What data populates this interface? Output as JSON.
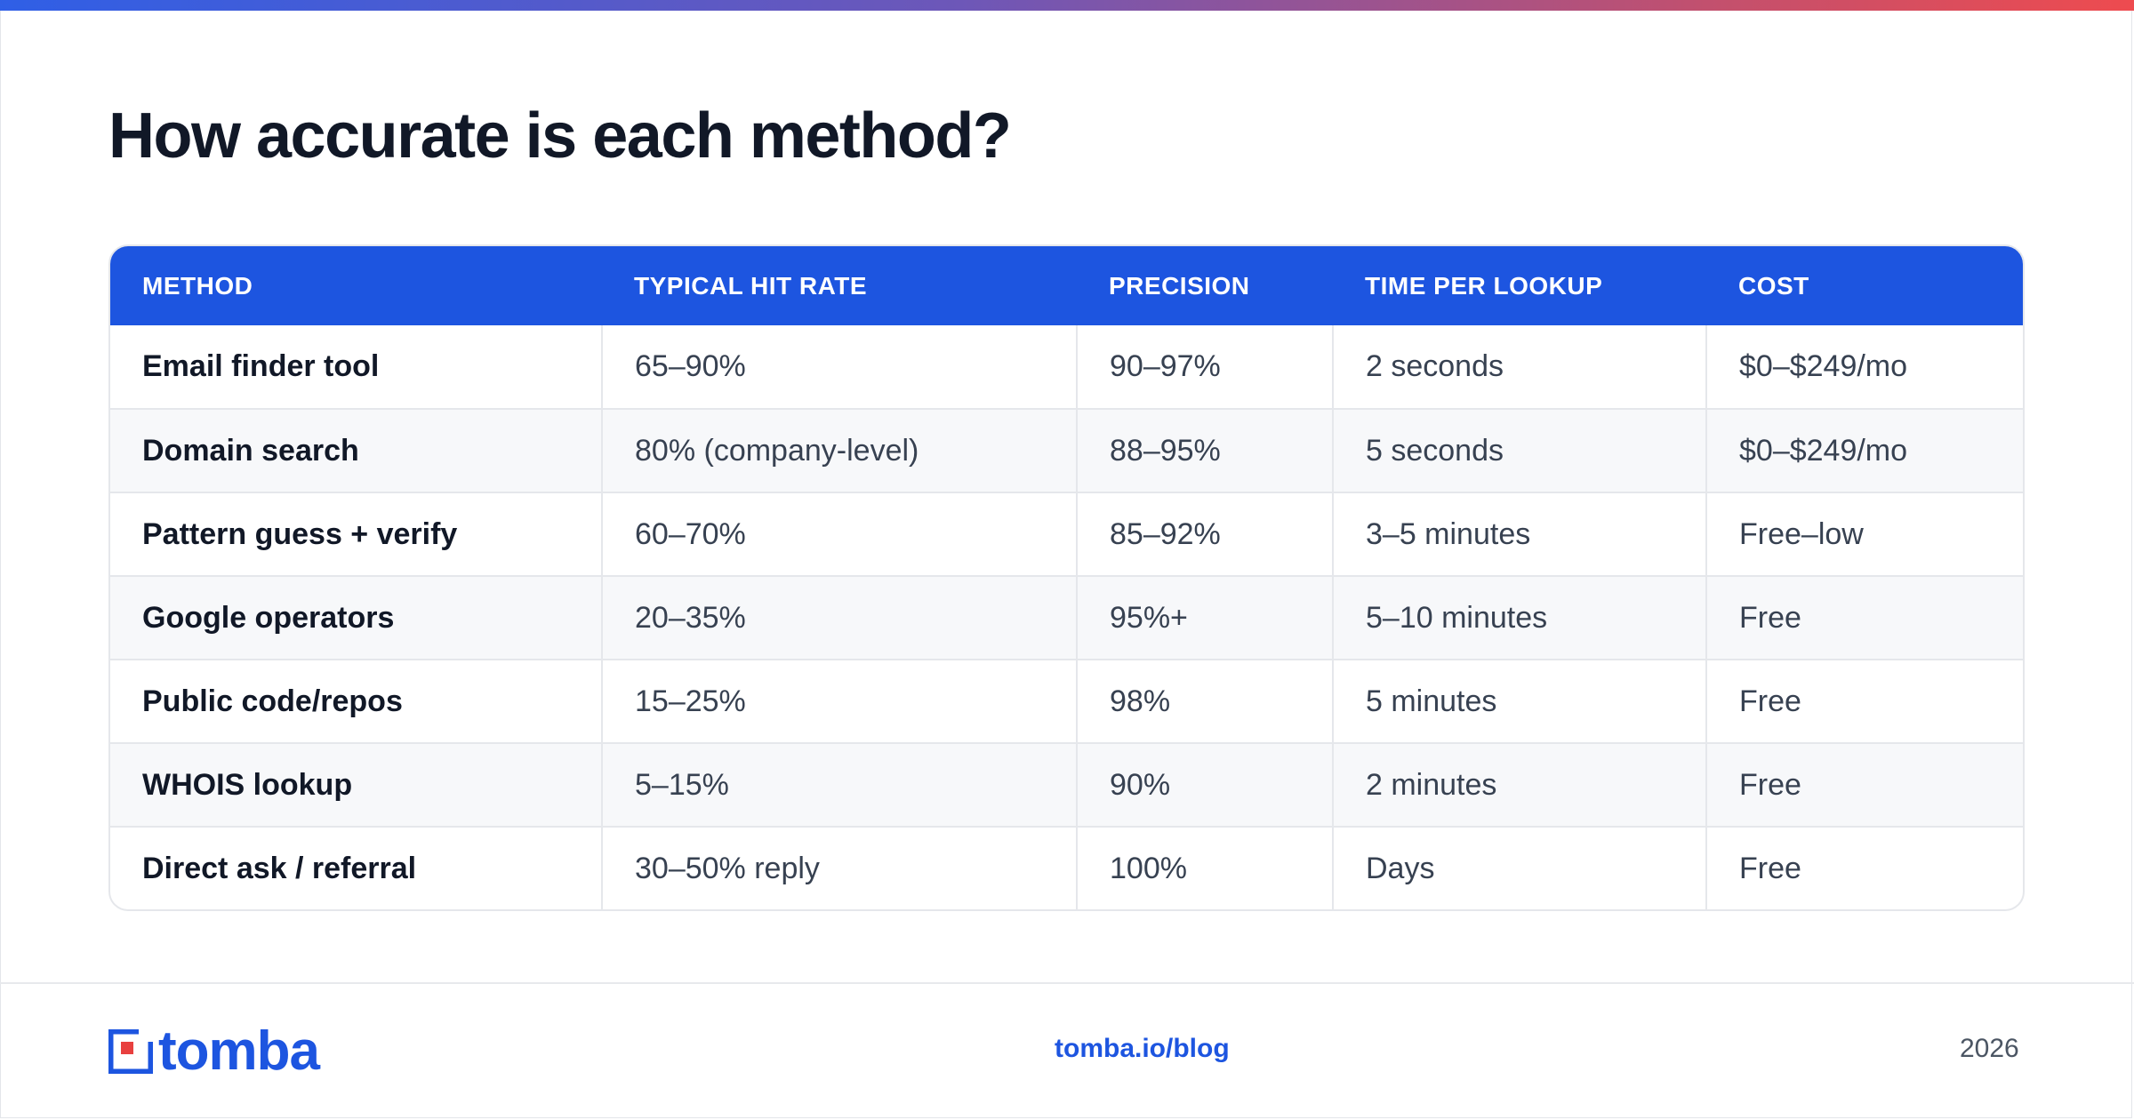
{
  "title": "How accurate is each method?",
  "table": {
    "headers": [
      "METHOD",
      "TYPICAL HIT RATE",
      "PRECISION",
      "TIME PER LOOKUP",
      "COST"
    ],
    "rows": [
      [
        "Email finder tool",
        "65–90%",
        "90–97%",
        "2 seconds",
        "$0–$249/mo"
      ],
      [
        "Domain search",
        "80% (company-level)",
        "88–95%",
        "5 seconds",
        "$0–$249/mo"
      ],
      [
        "Pattern guess + verify",
        "60–70%",
        "85–92%",
        "3–5 minutes",
        "Free–low"
      ],
      [
        "Google operators",
        "20–35%",
        "95%+",
        "5–10 minutes",
        "Free"
      ],
      [
        "Public code/repos",
        "15–25%",
        "98%",
        "5 minutes",
        "Free"
      ],
      [
        "WHOIS lookup",
        "5–15%",
        "90%",
        "2 minutes",
        "Free"
      ],
      [
        "Direct ask / referral",
        "30–50% reply",
        "100%",
        "Days",
        "Free"
      ]
    ]
  },
  "footer": {
    "logo_text": "tomba",
    "link": "tomba.io/blog",
    "year": "2026"
  },
  "colors": {
    "accent": "#1d55e0",
    "logo_red": "#e8403f",
    "heading": "#111827"
  }
}
